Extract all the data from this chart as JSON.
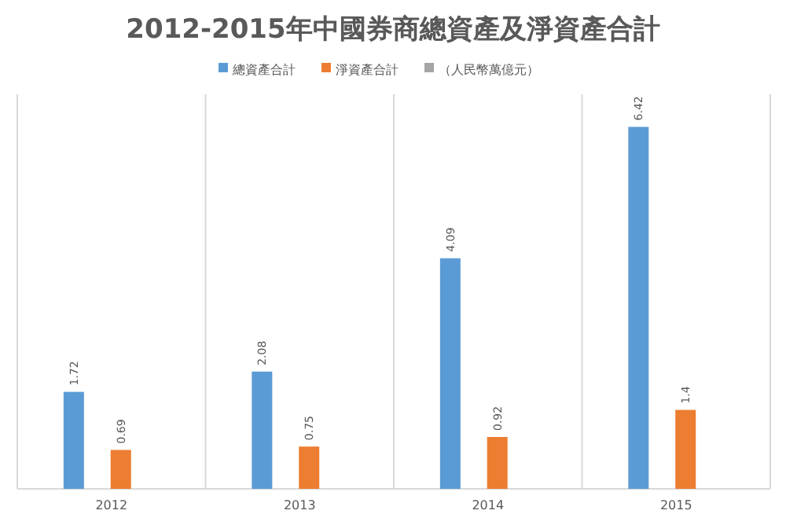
{
  "chart_data": {
    "type": "bar",
    "title": "2012-2015年中國券商總資產及淨資產合計",
    "categories": [
      "2012",
      "2013",
      "2014",
      "2015"
    ],
    "series": [
      {
        "name": "總資產合計",
        "color": "#5b9bd5",
        "values": [
          1.72,
          2.08,
          4.09,
          6.42
        ]
      },
      {
        "name": "淨資產合計",
        "color": "#ed7d31",
        "values": [
          0.69,
          0.75,
          0.92,
          1.4
        ]
      },
      {
        "name": "（人民幣萬億元）",
        "color": "#a5a5a5",
        "values": [
          null,
          null,
          null,
          null
        ]
      }
    ],
    "data_labels": true,
    "grid": "x",
    "legend": "top"
  }
}
